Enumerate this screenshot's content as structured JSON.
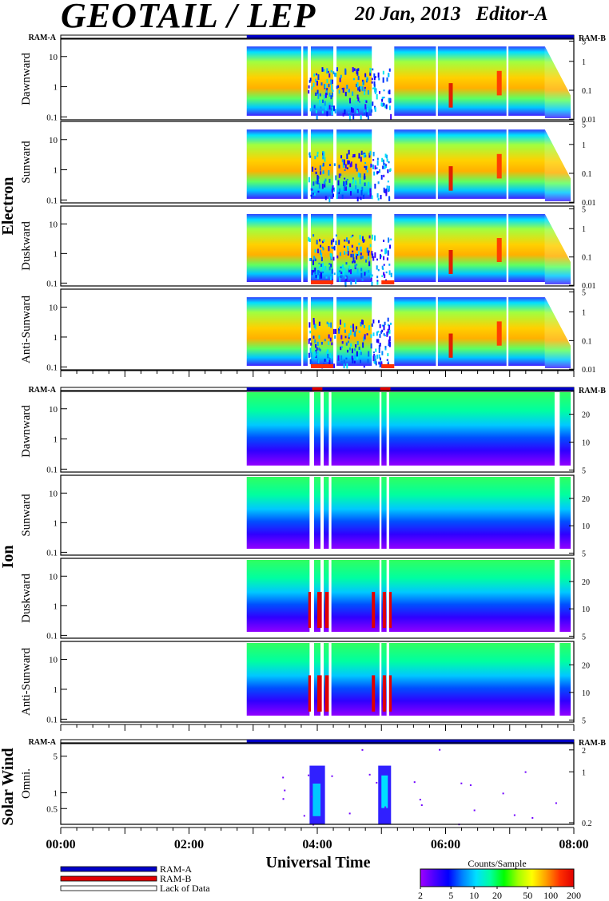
{
  "header": {
    "title": "GEOTAIL / LEP",
    "date": "20 Jan, 2013",
    "editor": "Editor-A"
  },
  "colors": {
    "ram_a": "#0000c8",
    "ram_b": "#e00000",
    "lack": "#ffffff",
    "colorbar": [
      "#a000ff",
      "#4a00ff",
      "#0000ff",
      "#0080ff",
      "#00e0ff",
      "#00ffa0",
      "#00ff00",
      "#a0ff00",
      "#ffff00",
      "#ffa000",
      "#ff3000",
      "#e00000"
    ]
  },
  "chart_data": {
    "type": "heatmap",
    "xlabel": "Universal Time",
    "x_ticks": [
      "00:00",
      "02:00",
      "04:00",
      "06:00",
      "08:00"
    ],
    "x_range_hours": [
      0,
      8
    ],
    "data_start_hour": 2.9,
    "groups": [
      {
        "name": "Electron",
        "mode_left": "RAM-A",
        "mode_right": "RAM-B",
        "left_axis_ticks": [
          0.1,
          1,
          10
        ],
        "right_axis_ticks": [
          0.01,
          0.1,
          1,
          5
        ],
        "panels": [
          {
            "label": "Dawnward"
          },
          {
            "label": "Sunward"
          },
          {
            "label": "Duskward"
          },
          {
            "label": "Anti-Sunward"
          }
        ]
      },
      {
        "name": "Ion",
        "mode_left": "RAM-A",
        "mode_right": "RAM-B",
        "left_axis_ticks": [
          0.1,
          1,
          10
        ],
        "right_axis_ticks": [
          5,
          10,
          20
        ],
        "panels": [
          {
            "label": "Dawnward"
          },
          {
            "label": "Sunward"
          },
          {
            "label": "Duskward"
          },
          {
            "label": "Anti-Sunward"
          }
        ]
      },
      {
        "name": "Solar Wind",
        "mode_left": "RAM-A",
        "mode_right": "RAM-B",
        "left_axis_ticks": [
          0.5,
          1,
          5
        ],
        "right_axis_ticks": [
          0.2,
          1,
          2
        ],
        "panels": [
          {
            "label": "Omni."
          }
        ]
      }
    ],
    "legend": [
      {
        "label": "RAM-A",
        "color": "#0000c8"
      },
      {
        "label": "RAM-B",
        "color": "#e00000"
      },
      {
        "label": "Lack of Data",
        "color": "#ffffff"
      }
    ],
    "colorbar": {
      "title": "Counts/Sample",
      "ticks": [
        2,
        5,
        10,
        20,
        50,
        100,
        200
      ],
      "scale": "log"
    }
  }
}
